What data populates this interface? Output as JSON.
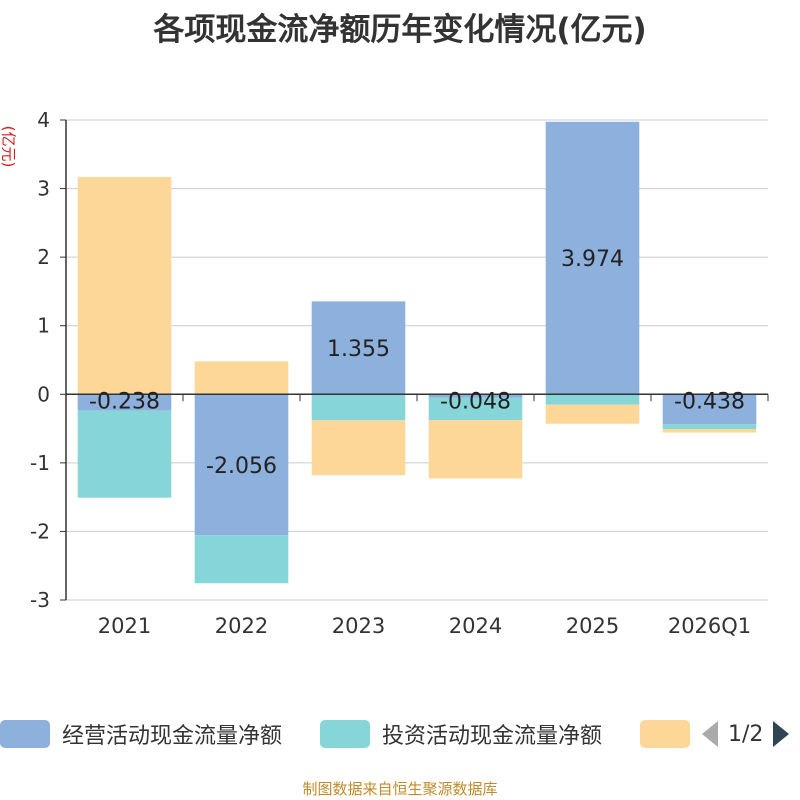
{
  "chart_data": {
    "type": "bar",
    "stacked": true,
    "title": "各项现金流净额历年变化情况(亿元)",
    "ylabel": "(亿元)",
    "xlabel": "",
    "ylim": [
      -3,
      4
    ],
    "yticks": [
      4,
      3,
      2,
      1,
      0,
      -1,
      -2,
      -3
    ],
    "categories": [
      "2021",
      "2022",
      "2023",
      "2024",
      "2025",
      "2026Q1"
    ],
    "series": [
      {
        "name": "经营活动现金流量净额",
        "color": "#8eb0dc",
        "values": [
          -0.238,
          -2.056,
          1.355,
          -0.048,
          3.974,
          -0.438
        ]
      },
      {
        "name": "投资活动现金流量净额",
        "color": "#86d6d9",
        "values": [
          -1.27,
          -0.7,
          -0.38,
          -0.33,
          -0.15,
          -0.07
        ]
      },
      {
        "name": "",
        "color": "#fdd798",
        "values": [
          3.17,
          0.48,
          -0.8,
          -0.85,
          -0.28,
          -0.05
        ]
      }
    ],
    "data_labels": [
      "-0.238",
      "-2.056",
      "1.355",
      "-0.048",
      "3.974",
      "-0.438"
    ],
    "grid": true,
    "legend_position": "bottom"
  },
  "legend": {
    "page_label": "1/2"
  },
  "footer": {
    "source": "制图数据来自恒生聚源数据库"
  }
}
